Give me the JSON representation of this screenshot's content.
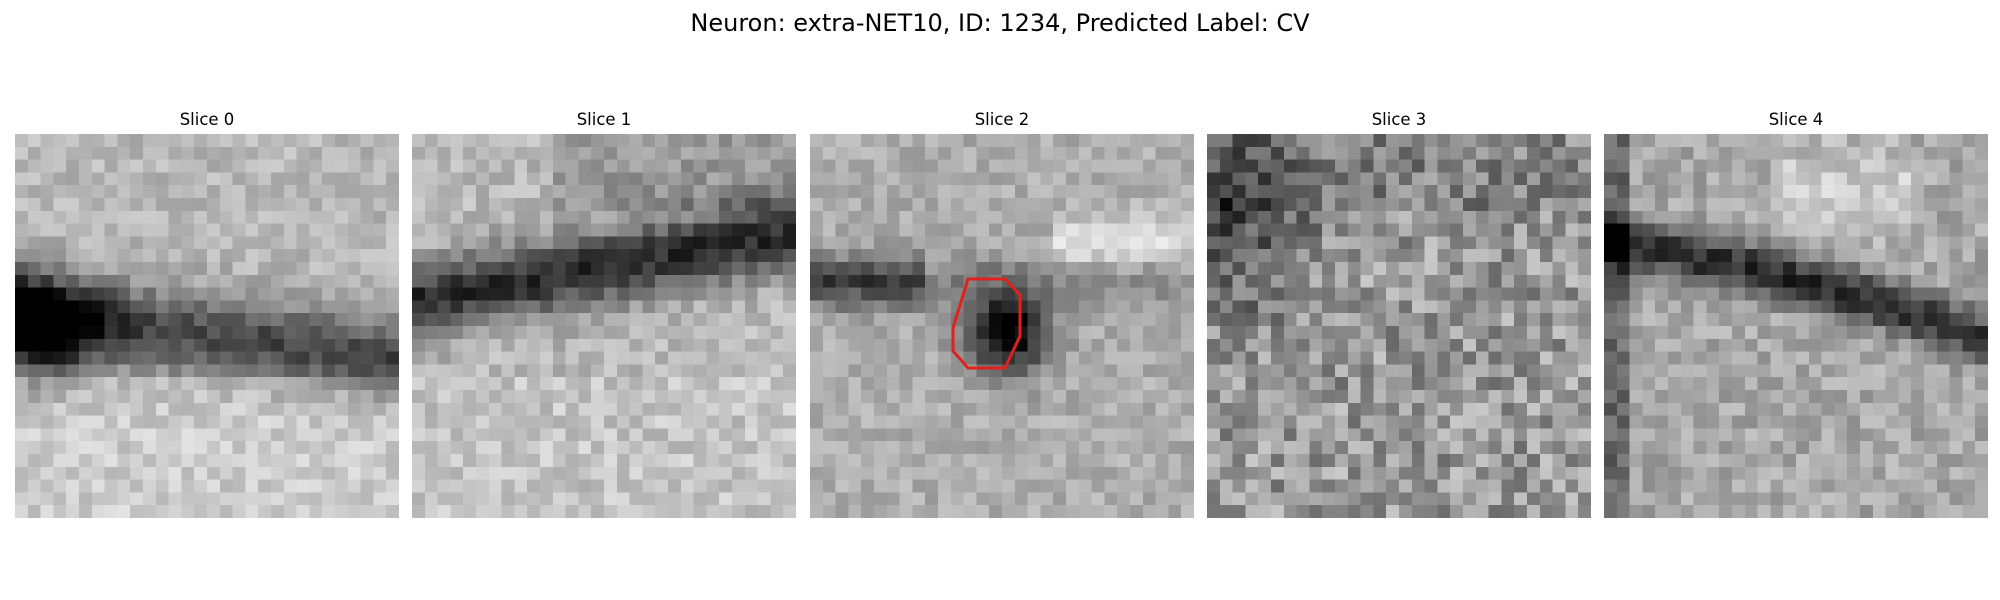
{
  "figure": {
    "title": "Neuron: extra-NET10, ID: 1234, Predicted Label: CV"
  },
  "slices": [
    {
      "label": "Slice 0",
      "pattern": "band-left",
      "marker": false
    },
    {
      "label": "Slice 1",
      "pattern": "band-diagonal",
      "marker": false
    },
    {
      "label": "Slice 2",
      "pattern": "center-blob",
      "marker": true
    },
    {
      "label": "Slice 3",
      "pattern": "noise-dark-corner",
      "marker": false
    },
    {
      "label": "Slice 4",
      "pattern": "band-top-arc",
      "marker": false
    }
  ],
  "style": {
    "marker_color": "#e0211d",
    "colormap": "grayscale"
  }
}
